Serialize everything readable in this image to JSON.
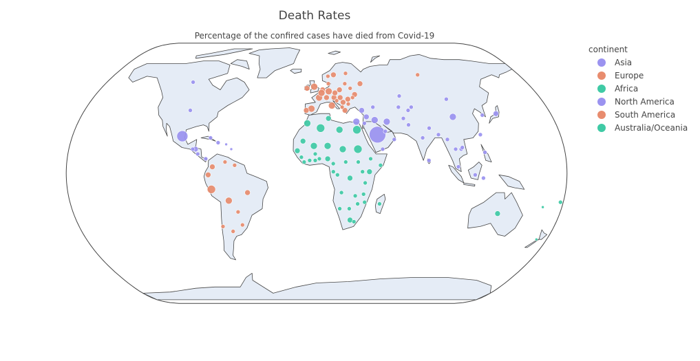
{
  "title": "Death Rates",
  "subtitle": "Percentage of the confired cases have died from Covid-19",
  "legend": {
    "title": "continent",
    "items": [
      {
        "label": "Asia",
        "color": "#9b93f0"
      },
      {
        "label": "Europe",
        "color": "#e88c6e"
      },
      {
        "label": "Africa",
        "color": "#3fcaa5"
      },
      {
        "label": "North America",
        "color": "#9b93f0"
      },
      {
        "label": "South America",
        "color": "#e88c6e"
      },
      {
        "label": "Australia/Oceania",
        "color": "#3fcaa5"
      }
    ]
  },
  "chart_data": {
    "type": "scatter_geo",
    "projection": "natural earth",
    "color_by": "continent",
    "points": [
      {
        "continent": "North America",
        "lon": -99,
        "lat": 23,
        "size": 8
      },
      {
        "continent": "North America",
        "lon": -98,
        "lat": 39,
        "size": 3
      },
      {
        "continent": "North America",
        "lon": -106,
        "lat": 57,
        "size": 3
      },
      {
        "continent": "North America",
        "lon": -88,
        "lat": 15,
        "size": 4
      },
      {
        "continent": "North America",
        "lon": -86,
        "lat": 12,
        "size": 3
      },
      {
        "continent": "North America",
        "lon": -80,
        "lat": 9,
        "size": 3
      },
      {
        "continent": "North America",
        "lon": -78,
        "lat": 22,
        "size": 3
      },
      {
        "continent": "North America",
        "lon": -72,
        "lat": 19,
        "size": 3
      },
      {
        "continent": "North America",
        "lon": -66,
        "lat": 18,
        "size": 2
      },
      {
        "continent": "North America",
        "lon": -62,
        "lat": 15,
        "size": 2
      },
      {
        "continent": "North America",
        "lon": -90,
        "lat": 15,
        "size": 3
      },
      {
        "continent": "South America",
        "lon": -75,
        "lat": 4,
        "size": 4
      },
      {
        "continent": "South America",
        "lon": -66,
        "lat": 7,
        "size": 3
      },
      {
        "continent": "South America",
        "lon": -59,
        "lat": 5,
        "size": 3
      },
      {
        "continent": "South America",
        "lon": -78,
        "lat": -1,
        "size": 4
      },
      {
        "continent": "South America",
        "lon": -76,
        "lat": -10,
        "size": 6
      },
      {
        "continent": "South America",
        "lon": -50,
        "lat": -12,
        "size": 4
      },
      {
        "continent": "South America",
        "lon": -64,
        "lat": -17,
        "size": 5
      },
      {
        "continent": "South America",
        "lon": -58,
        "lat": -24,
        "size": 3
      },
      {
        "continent": "South America",
        "lon": -56,
        "lat": -32,
        "size": 3
      },
      {
        "continent": "South America",
        "lon": -64,
        "lat": -36,
        "size": 3
      },
      {
        "continent": "South America",
        "lon": -71,
        "lat": -33,
        "size": 3
      },
      {
        "continent": "Europe",
        "lon": -2,
        "lat": 54,
        "size": 5
      },
      {
        "continent": "Europe",
        "lon": -8,
        "lat": 53,
        "size": 4
      },
      {
        "continent": "Europe",
        "lon": 2,
        "lat": 47,
        "size": 5
      },
      {
        "continent": "Europe",
        "lon": -4,
        "lat": 40,
        "size": 5
      },
      {
        "continent": "Europe",
        "lon": -8,
        "lat": 39,
        "size": 4
      },
      {
        "continent": "Europe",
        "lon": 12,
        "lat": 42,
        "size": 5
      },
      {
        "continent": "Europe",
        "lon": 10,
        "lat": 51,
        "size": 5
      },
      {
        "continent": "Europe",
        "lon": 5,
        "lat": 52,
        "size": 4
      },
      {
        "continent": "Europe",
        "lon": 4,
        "lat": 50,
        "size": 5
      },
      {
        "continent": "Europe",
        "lon": 8,
        "lat": 47,
        "size": 4
      },
      {
        "continent": "Europe",
        "lon": 14,
        "lat": 47,
        "size": 4
      },
      {
        "continent": "Europe",
        "lon": 19,
        "lat": 52,
        "size": 4
      },
      {
        "continent": "Europe",
        "lon": 15,
        "lat": 50,
        "size": 4
      },
      {
        "continent": "Europe",
        "lon": 19,
        "lat": 47,
        "size": 4
      },
      {
        "continent": "Europe",
        "lon": 25,
        "lat": 46,
        "size": 4
      },
      {
        "continent": "Europe",
        "lon": 21,
        "lat": 44,
        "size": 4
      },
      {
        "continent": "Europe",
        "lon": 22,
        "lat": 39,
        "size": 4
      },
      {
        "continent": "Europe",
        "lon": 25,
        "lat": 43,
        "size": 3
      },
      {
        "continent": "Europe",
        "lon": 15,
        "lat": 62,
        "size": 4
      },
      {
        "continent": "Europe",
        "lon": 26,
        "lat": 63,
        "size": 3
      },
      {
        "continent": "Europe",
        "lon": 10,
        "lat": 61,
        "size": 3
      },
      {
        "continent": "Europe",
        "lon": 10,
        "lat": 56,
        "size": 3
      },
      {
        "continent": "Europe",
        "lon": 31,
        "lat": 49,
        "size": 4
      },
      {
        "continent": "Europe",
        "lon": 28,
        "lat": 53,
        "size": 3
      },
      {
        "continent": "Europe",
        "lon": 24,
        "lat": 56,
        "size": 3
      },
      {
        "continent": "Europe",
        "lon": 37,
        "lat": 56,
        "size": 4
      },
      {
        "continent": "Europe",
        "lon": 90,
        "lat": 62,
        "size": 3
      },
      {
        "continent": "Europe",
        "lon": 29,
        "lat": 47,
        "size": 3
      },
      {
        "continent": "Europe",
        "lon": 20,
        "lat": 41,
        "size": 3
      },
      {
        "continent": "Europe",
        "lon": 16,
        "lat": 45,
        "size": 3
      },
      {
        "continent": "Africa",
        "lon": 3,
        "lat": 28,
        "size": 6
      },
      {
        "continent": "Africa",
        "lon": -7,
        "lat": 31,
        "size": 5
      },
      {
        "continent": "Africa",
        "lon": 9,
        "lat": 34,
        "size": 4
      },
      {
        "continent": "Africa",
        "lon": 17,
        "lat": 27,
        "size": 5
      },
      {
        "continent": "Africa",
        "lon": 30,
        "lat": 27,
        "size": 6
      },
      {
        "continent": "Africa",
        "lon": 30,
        "lat": 15,
        "size": 6
      },
      {
        "continent": "Africa",
        "lon": 19,
        "lat": 15,
        "size": 5
      },
      {
        "continent": "Africa",
        "lon": 8,
        "lat": 17,
        "size": 5
      },
      {
        "continent": "Africa",
        "lon": -2,
        "lat": 17,
        "size": 5
      },
      {
        "continent": "Africa",
        "lon": -10,
        "lat": 20,
        "size": 4
      },
      {
        "continent": "Africa",
        "lon": -14,
        "lat": 14,
        "size": 4
      },
      {
        "continent": "Africa",
        "lon": -11,
        "lat": 10,
        "size": 3
      },
      {
        "continent": "Africa",
        "lon": -9,
        "lat": 7,
        "size": 3
      },
      {
        "continent": "Africa",
        "lon": -5,
        "lat": 8,
        "size": 3
      },
      {
        "continent": "Africa",
        "lon": -1,
        "lat": 12,
        "size": 3
      },
      {
        "continent": "Africa",
        "lon": -1,
        "lat": 8,
        "size": 3
      },
      {
        "continent": "Africa",
        "lon": 2,
        "lat": 9,
        "size": 3
      },
      {
        "continent": "Africa",
        "lon": 8,
        "lat": 9,
        "size": 4
      },
      {
        "continent": "Africa",
        "lon": 12,
        "lat": 6,
        "size": 3
      },
      {
        "continent": "Africa",
        "lon": 21,
        "lat": 7,
        "size": 3
      },
      {
        "continent": "Africa",
        "lon": 30,
        "lat": 7,
        "size": 3
      },
      {
        "continent": "Africa",
        "lon": 39,
        "lat": 9,
        "size": 3
      },
      {
        "continent": "Africa",
        "lon": 46,
        "lat": 5,
        "size": 3
      },
      {
        "continent": "Africa",
        "lon": 38,
        "lat": 1,
        "size": 4
      },
      {
        "continent": "Africa",
        "lon": 33,
        "lat": 1,
        "size": 3
      },
      {
        "continent": "Africa",
        "lon": 24,
        "lat": -3,
        "size": 4
      },
      {
        "continent": "Africa",
        "lon": 15,
        "lat": -1,
        "size": 3
      },
      {
        "continent": "Africa",
        "lon": 12,
        "lat": 1,
        "size": 3
      },
      {
        "continent": "Africa",
        "lon": 35,
        "lat": -6,
        "size": 3
      },
      {
        "continent": "Africa",
        "lon": 18,
        "lat": -12,
        "size": 3
      },
      {
        "continent": "Africa",
        "lon": 28,
        "lat": -14,
        "size": 3
      },
      {
        "continent": "Africa",
        "lon": 34,
        "lat": -13,
        "size": 3
      },
      {
        "continent": "Africa",
        "lon": 35,
        "lat": -18,
        "size": 3
      },
      {
        "continent": "Africa",
        "lon": 30,
        "lat": -19,
        "size": 3
      },
      {
        "continent": "Africa",
        "lon": 24,
        "lat": -22,
        "size": 3
      },
      {
        "continent": "Africa",
        "lon": 17,
        "lat": -22,
        "size": 3
      },
      {
        "continent": "Africa",
        "lon": 25,
        "lat": -29,
        "size": 4
      },
      {
        "continent": "Africa",
        "lon": 28,
        "lat": -30,
        "size": 3
      },
      {
        "continent": "Africa",
        "lon": 46,
        "lat": -19,
        "size": 3
      },
      {
        "continent": "Asia",
        "lon": 45,
        "lat": 24,
        "size": 12
      },
      {
        "continent": "Asia",
        "lon": 44,
        "lat": 33,
        "size": 5
      },
      {
        "continent": "Asia",
        "lon": 53,
        "lat": 32,
        "size": 5
      },
      {
        "continent": "Asia",
        "lon": 35,
        "lat": 39,
        "size": 4
      },
      {
        "continent": "Asia",
        "lon": 38,
        "lat": 35,
        "size": 4
      },
      {
        "continent": "Asia",
        "lon": 36,
        "lat": 31,
        "size": 3
      },
      {
        "continent": "Asia",
        "lon": 48,
        "lat": 15,
        "size": 3
      },
      {
        "continent": "Asia",
        "lon": 57,
        "lat": 21,
        "size": 3
      },
      {
        "continent": "Asia",
        "lon": 67,
        "lat": 48,
        "size": 3
      },
      {
        "continent": "Asia",
        "lon": 64,
        "lat": 41,
        "size": 3
      },
      {
        "continent": "Asia",
        "lon": 74,
        "lat": 41,
        "size": 3
      },
      {
        "continent": "Asia",
        "lon": 71,
        "lat": 39,
        "size": 3
      },
      {
        "continent": "Asia",
        "lon": 66,
        "lat": 34,
        "size": 3
      },
      {
        "continent": "Asia",
        "lon": 69,
        "lat": 30,
        "size": 3
      },
      {
        "continent": "Asia",
        "lon": 78,
        "lat": 22,
        "size": 3
      },
      {
        "continent": "Asia",
        "lon": 84,
        "lat": 28,
        "size": 3
      },
      {
        "continent": "Asia",
        "lon": 90,
        "lat": 24,
        "size": 3
      },
      {
        "continent": "Asia",
        "lon": 104,
        "lat": 35,
        "size": 5
      },
      {
        "continent": "Asia",
        "lon": 104,
        "lat": 46,
        "size": 3
      },
      {
        "continent": "Asia",
        "lon": 127,
        "lat": 36,
        "size": 3
      },
      {
        "continent": "Asia",
        "lon": 138,
        "lat": 37,
        "size": 4
      },
      {
        "continent": "Asia",
        "lon": 121,
        "lat": 24,
        "size": 3
      },
      {
        "continent": "Asia",
        "lon": 96,
        "lat": 21,
        "size": 3
      },
      {
        "continent": "Asia",
        "lon": 101,
        "lat": 15,
        "size": 3
      },
      {
        "continent": "Asia",
        "lon": 105,
        "lat": 15,
        "size": 3
      },
      {
        "continent": "Asia",
        "lon": 106,
        "lat": 16,
        "size": 3
      },
      {
        "continent": "Asia",
        "lon": 102,
        "lat": 4,
        "size": 3
      },
      {
        "continent": "Asia",
        "lon": 122,
        "lat": 13,
        "size": 3
      },
      {
        "continent": "Asia",
        "lon": 114,
        "lat": -1,
        "size": 3
      },
      {
        "continent": "Asia",
        "lon": 120,
        "lat": -3,
        "size": 3
      },
      {
        "continent": "Asia",
        "lon": 81,
        "lat": 8,
        "size": 3
      },
      {
        "continent": "Asia",
        "lon": 30,
        "lat": 32,
        "size": 5
      },
      {
        "continent": "Asia",
        "lon": 44,
        "lat": 41,
        "size": 3
      },
      {
        "continent": "Asia",
        "lon": 51,
        "lat": 26,
        "size": 3
      },
      {
        "continent": "Australia/Oceania",
        "lon": 134,
        "lat": -25,
        "size": 4
      },
      {
        "continent": "Australia/Oceania",
        "lon": 172,
        "lat": -41,
        "size": 2
      },
      {
        "continent": "Australia/Oceania",
        "lon": 178,
        "lat": -18,
        "size": 3
      },
      {
        "continent": "Australia/Oceania",
        "lon": 166,
        "lat": -21,
        "size": 2
      }
    ]
  }
}
